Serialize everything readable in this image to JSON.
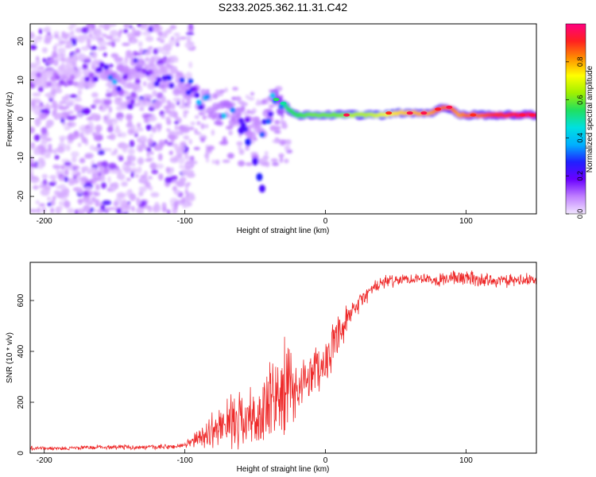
{
  "title": "S233.2025.362.11.31.C42",
  "chart_data": [
    {
      "type": "heatmap",
      "title": "S233.2025.362.11.31.C42",
      "xlabel": "Height of straight line (km)",
      "ylabel": "Frequency (Hz)",
      "xlim": [
        -210,
        150
      ],
      "ylim": [
        -24.5,
        24.5
      ],
      "xticks": [
        -200,
        -100,
        0,
        100
      ],
      "yticks": [
        -20,
        -10,
        0,
        10,
        20
      ],
      "colorbar": {
        "label": "Normalized spectral amplitude",
        "range": [
          0,
          1
        ],
        "ticks": [
          "0.0",
          "0.2",
          "0.4",
          "0.6",
          "0.8"
        ],
        "colors": [
          "#f2e6ff",
          "#c080ff",
          "#6a00ff",
          "#2020ff",
          "#00b0ff",
          "#00e0e0",
          "#20e060",
          "#a0f000",
          "#ffff00",
          "#ff9000",
          "#ff2020",
          "#ff0080"
        ]
      },
      "ridge": {
        "description": "dominant frequency (Hz) vs height (km)",
        "x": [
          -210,
          -180,
          -160,
          -150,
          -130,
          -110,
          -100,
          -95,
          -90,
          -85,
          -80,
          -75,
          -70,
          -65,
          -60,
          -55,
          -50,
          -45,
          -40,
          -35,
          -30,
          -25,
          -20,
          -10,
          0,
          10,
          20,
          30,
          40,
          50,
          60,
          70,
          75,
          80,
          85,
          90,
          95,
          100,
          110,
          120,
          130,
          140,
          150
        ],
        "y": [
          9,
          11,
          12,
          10,
          11,
          10,
          9,
          7,
          5,
          4,
          3,
          2,
          1,
          0,
          0,
          -1,
          -2,
          -2,
          2,
          5,
          4,
          2,
          1,
          1,
          1,
          1,
          1,
          1,
          1,
          1.5,
          1.5,
          1.5,
          1.5,
          2.5,
          3,
          2.5,
          1,
          1,
          1,
          1,
          1,
          1,
          1
        ]
      },
      "ridge_amplitude": [
        0.1,
        0.1,
        0.15,
        0.3,
        0.15,
        0.2,
        0.25,
        0.25,
        0.28,
        0.3,
        0.28,
        0.3,
        0.3,
        0.28,
        0.3,
        0.28,
        0.22,
        0.25,
        0.3,
        0.45,
        0.5,
        0.55,
        0.55,
        0.6,
        0.6,
        0.6,
        0.65,
        0.65,
        0.7,
        0.75,
        0.78,
        0.8,
        0.8,
        0.85,
        0.85,
        0.85,
        0.8,
        0.85,
        0.85,
        0.9,
        0.9,
        0.95,
        0.95
      ],
      "branch": {
        "description": "secondary descending feature",
        "x": [
          -60,
          -55,
          -50,
          -47,
          -45
        ],
        "y": [
          -3,
          -6,
          -11,
          -15,
          -18
        ]
      }
    },
    {
      "type": "line",
      "xlabel": "Height of straight line (km)",
      "ylabel": "SNR (10 * v/v)",
      "xlim": [
        -210,
        150
      ],
      "ylim": [
        0,
        750
      ],
      "xticks": [
        -200,
        -100,
        0,
        100
      ],
      "yticks": [
        0,
        200,
        400,
        600
      ],
      "color": "#ee2a2a",
      "x": [
        -210,
        -190,
        -170,
        -150,
        -130,
        -110,
        -100,
        -90,
        -80,
        -70,
        -60,
        -50,
        -40,
        -30,
        -20,
        -10,
        0,
        10,
        20,
        30,
        40,
        50,
        60,
        70,
        80,
        90,
        100,
        110,
        120,
        130,
        140,
        150
      ],
      "y": [
        20,
        18,
        22,
        25,
        22,
        25,
        30,
        60,
        90,
        120,
        140,
        130,
        180,
        240,
        250,
        320,
        360,
        460,
        560,
        630,
        670,
        680,
        685,
        690,
        680,
        690,
        690,
        680,
        680,
        675,
        680,
        680
      ],
      "spread": [
        10,
        8,
        10,
        12,
        10,
        12,
        15,
        40,
        80,
        110,
        130,
        150,
        200,
        250,
        120,
        110,
        110,
        90,
        60,
        40,
        30,
        30,
        25,
        25,
        30,
        35,
        40,
        35,
        30,
        30,
        30,
        30
      ]
    }
  ]
}
